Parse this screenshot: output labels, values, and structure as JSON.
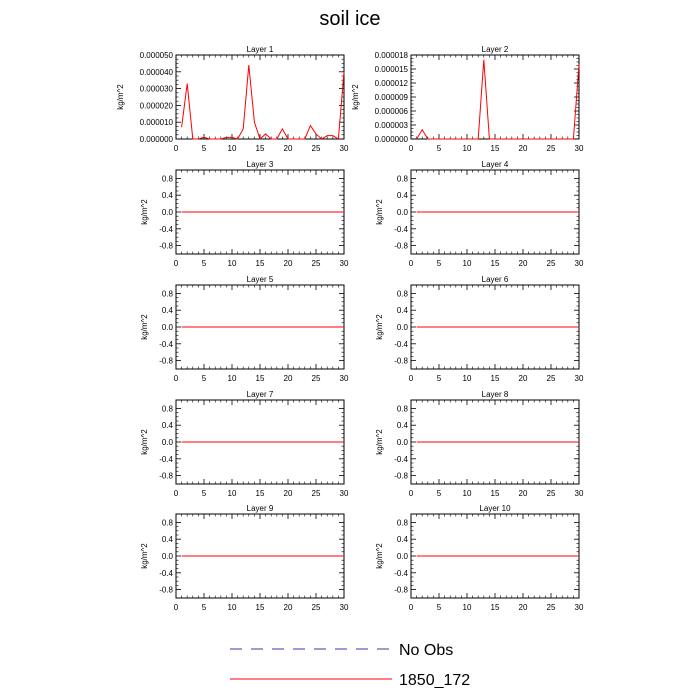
{
  "figure_title": "soil ice",
  "chart_data": [
    {
      "type": "line",
      "title": "Layer 1",
      "ylabel": "kg/m^2",
      "xlim": [
        0,
        30
      ],
      "ylim": [
        0,
        5e-05
      ],
      "yticks": [
        0,
        1e-05,
        2e-05,
        3e-05,
        4e-05,
        5e-05
      ],
      "ytick_labels": [
        "0.000000",
        "0.000010",
        "0.000020",
        "0.000030",
        "0.000040",
        "0.000050"
      ],
      "xticks": [
        0,
        5,
        10,
        15,
        20,
        25,
        30
      ],
      "xtick_labels": [
        "0",
        "5",
        "10",
        "15",
        "20",
        "25",
        "30"
      ],
      "series": [
        {
          "name": "1850_172",
          "color": "#ff0000",
          "x": [
            1,
            2,
            3,
            4,
            5,
            6,
            7,
            8,
            9,
            10,
            11,
            12,
            13,
            14,
            15,
            16,
            17,
            18,
            19,
            20,
            21,
            22,
            23,
            24,
            25,
            26,
            27,
            28,
            29,
            30
          ],
          "values": [
            7e-06,
            3.3e-05,
            0,
            0,
            1e-06,
            0,
            0,
            0,
            1e-06,
            1e-06,
            0,
            6e-06,
            4.4e-05,
            1e-05,
            0,
            3e-06,
            0,
            0,
            6e-06,
            0,
            0,
            0,
            0,
            8e-06,
            3e-06,
            0,
            2e-06,
            2e-06,
            0,
            4e-05
          ]
        }
      ]
    },
    {
      "type": "line",
      "title": "Layer 2",
      "ylabel": "kg/m^2",
      "xlim": [
        0,
        30
      ],
      "ylim": [
        0,
        1.8e-05
      ],
      "yticks": [
        0,
        3e-06,
        6e-06,
        9e-06,
        1.2e-05,
        1.5e-05,
        1.8e-05
      ],
      "ytick_labels": [
        "0.000000",
        "0.000003",
        "0.000006",
        "0.000009",
        "0.000012",
        "0.000015",
        "0.000018"
      ],
      "xticks": [
        0,
        5,
        10,
        15,
        20,
        25,
        30
      ],
      "xtick_labels": [
        "0",
        "5",
        "10",
        "15",
        "20",
        "25",
        "30"
      ],
      "series": [
        {
          "name": "1850_172",
          "color": "#ff0000",
          "x": [
            1,
            2,
            3,
            4,
            5,
            6,
            7,
            8,
            9,
            10,
            11,
            12,
            13,
            14,
            15,
            16,
            17,
            18,
            19,
            20,
            21,
            22,
            23,
            24,
            25,
            26,
            27,
            28,
            29,
            30
          ],
          "values": [
            0,
            2e-06,
            0,
            0,
            0,
            0,
            0,
            0,
            0,
            0,
            0,
            0,
            1.7e-05,
            0,
            0,
            0,
            0,
            0,
            0,
            0,
            0,
            0,
            0,
            0,
            0,
            0,
            0,
            0,
            0,
            1.6e-05
          ]
        }
      ]
    },
    {
      "type": "line",
      "title": "Layer 3",
      "ylabel": "kg/m^2",
      "xlim": [
        0,
        30
      ],
      "ylim": [
        -1,
        1
      ],
      "yticks": [
        -0.8,
        -0.4,
        0,
        0.4,
        0.8
      ],
      "ytick_labels": [
        "-0.8",
        "-0.4",
        "0.0",
        "0.4",
        "0.8"
      ],
      "xticks": [
        0,
        5,
        10,
        15,
        20,
        25,
        30
      ],
      "xtick_labels": [
        "0",
        "5",
        "10",
        "15",
        "20",
        "25",
        "30"
      ],
      "series": [
        {
          "name": "1850_172",
          "color": "#ff0000",
          "x": [
            1,
            30
          ],
          "values": [
            0,
            0
          ]
        }
      ]
    },
    {
      "type": "line",
      "title": "Layer 4",
      "ylabel": "kg/m^2",
      "xlim": [
        0,
        30
      ],
      "ylim": [
        -1,
        1
      ],
      "yticks": [
        -0.8,
        -0.4,
        0,
        0.4,
        0.8
      ],
      "ytick_labels": [
        "-0.8",
        "-0.4",
        "0.0",
        "0.4",
        "0.8"
      ],
      "xticks": [
        0,
        5,
        10,
        15,
        20,
        25,
        30
      ],
      "xtick_labels": [
        "0",
        "5",
        "10",
        "15",
        "20",
        "25",
        "30"
      ],
      "series": [
        {
          "name": "1850_172",
          "color": "#ff0000",
          "x": [
            1,
            30
          ],
          "values": [
            0,
            0
          ]
        }
      ]
    },
    {
      "type": "line",
      "title": "Layer 5",
      "ylabel": "kg/m^2",
      "xlim": [
        0,
        30
      ],
      "ylim": [
        -1,
        1
      ],
      "yticks": [
        -0.8,
        -0.4,
        0,
        0.4,
        0.8
      ],
      "ytick_labels": [
        "-0.8",
        "-0.4",
        "0.0",
        "0.4",
        "0.8"
      ],
      "xticks": [
        0,
        5,
        10,
        15,
        20,
        25,
        30
      ],
      "xtick_labels": [
        "0",
        "5",
        "10",
        "15",
        "20",
        "25",
        "30"
      ],
      "series": [
        {
          "name": "1850_172",
          "color": "#ff0000",
          "x": [
            1,
            30
          ],
          "values": [
            0,
            0
          ]
        }
      ]
    },
    {
      "type": "line",
      "title": "Layer 6",
      "ylabel": "kg/m^2",
      "xlim": [
        0,
        30
      ],
      "ylim": [
        -1,
        1
      ],
      "yticks": [
        -0.8,
        -0.4,
        0,
        0.4,
        0.8
      ],
      "ytick_labels": [
        "-0.8",
        "-0.4",
        "0.0",
        "0.4",
        "0.8"
      ],
      "xticks": [
        0,
        5,
        10,
        15,
        20,
        25,
        30
      ],
      "xtick_labels": [
        "0",
        "5",
        "10",
        "15",
        "20",
        "25",
        "30"
      ],
      "series": [
        {
          "name": "1850_172",
          "color": "#ff0000",
          "x": [
            1,
            30
          ],
          "values": [
            0,
            0
          ]
        }
      ]
    },
    {
      "type": "line",
      "title": "Layer 7",
      "ylabel": "kg/m^2",
      "xlim": [
        0,
        30
      ],
      "ylim": [
        -1,
        1
      ],
      "yticks": [
        -0.8,
        -0.4,
        0,
        0.4,
        0.8
      ],
      "ytick_labels": [
        "-0.8",
        "-0.4",
        "0.0",
        "0.4",
        "0.8"
      ],
      "xticks": [
        0,
        5,
        10,
        15,
        20,
        25,
        30
      ],
      "xtick_labels": [
        "0",
        "5",
        "10",
        "15",
        "20",
        "25",
        "30"
      ],
      "series": [
        {
          "name": "1850_172",
          "color": "#ff0000",
          "x": [
            1,
            30
          ],
          "values": [
            0,
            0
          ]
        }
      ]
    },
    {
      "type": "line",
      "title": "Layer 8",
      "ylabel": "kg/m^2",
      "xlim": [
        0,
        30
      ],
      "ylim": [
        -1,
        1
      ],
      "yticks": [
        -0.8,
        -0.4,
        0,
        0.4,
        0.8
      ],
      "ytick_labels": [
        "-0.8",
        "-0.4",
        "0.0",
        "0.4",
        "0.8"
      ],
      "xticks": [
        0,
        5,
        10,
        15,
        20,
        25,
        30
      ],
      "xtick_labels": [
        "0",
        "5",
        "10",
        "15",
        "20",
        "25",
        "30"
      ],
      "series": [
        {
          "name": "1850_172",
          "color": "#ff0000",
          "x": [
            1,
            30
          ],
          "values": [
            0,
            0
          ]
        }
      ]
    },
    {
      "type": "line",
      "title": "Layer 9",
      "ylabel": "kg/m^2",
      "xlim": [
        0,
        30
      ],
      "ylim": [
        -1,
        1
      ],
      "yticks": [
        -0.8,
        -0.4,
        0,
        0.4,
        0.8
      ],
      "ytick_labels": [
        "-0.8",
        "-0.4",
        "0.0",
        "0.4",
        "0.8"
      ],
      "xticks": [
        0,
        5,
        10,
        15,
        20,
        25,
        30
      ],
      "xtick_labels": [
        "0",
        "5",
        "10",
        "15",
        "20",
        "25",
        "30"
      ],
      "series": [
        {
          "name": "1850_172",
          "color": "#ff0000",
          "x": [
            1,
            30
          ],
          "values": [
            0,
            0
          ]
        }
      ]
    },
    {
      "type": "line",
      "title": "Layer 10",
      "ylabel": "kg/m^2",
      "xlim": [
        0,
        30
      ],
      "ylim": [
        -1,
        1
      ],
      "yticks": [
        -0.8,
        -0.4,
        0,
        0.4,
        0.8
      ],
      "ytick_labels": [
        "-0.8",
        "-0.4",
        "0.0",
        "0.4",
        "0.8"
      ],
      "xticks": [
        0,
        5,
        10,
        15,
        20,
        25,
        30
      ],
      "xtick_labels": [
        "0",
        "5",
        "10",
        "15",
        "20",
        "25",
        "30"
      ],
      "series": [
        {
          "name": "1850_172",
          "color": "#ff0000",
          "x": [
            1,
            30
          ],
          "values": [
            0,
            0
          ]
        }
      ]
    }
  ],
  "legend": {
    "entries": [
      {
        "label": "No Obs",
        "color": "#3a3aa8",
        "style": "dashed"
      },
      {
        "label": "1850_172",
        "color": "#ff0000",
        "style": "solid"
      }
    ]
  }
}
